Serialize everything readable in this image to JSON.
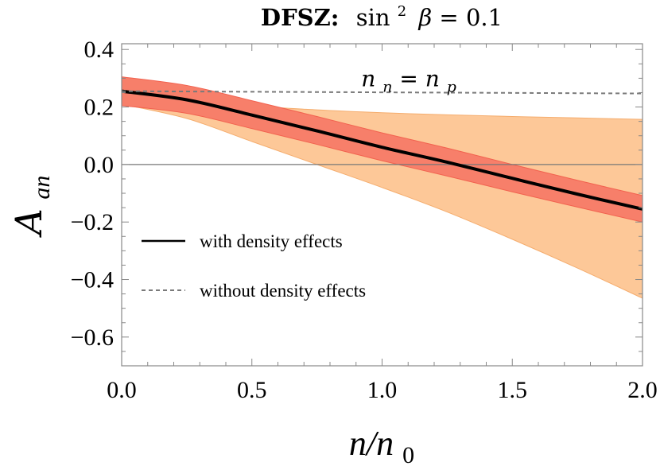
{
  "chart_data": {
    "type": "line",
    "title_parts": {
      "bold": "DFSZ:",
      "func": "sin",
      "exp": "2",
      "symbol": "β",
      "rest": " = 0.1"
    },
    "xlabel": "n/n0",
    "xlabel_parts": {
      "main": "n/n",
      "sub": "0"
    },
    "ylabel": "A_an",
    "ylabel_parts": {
      "main": "A",
      "sub": "an"
    },
    "xlim": [
      0.0,
      2.0
    ],
    "ylim": [
      -0.7,
      0.42
    ],
    "x_ticks": [
      "0.0",
      "0.5",
      "1.0",
      "1.5",
      "2.0"
    ],
    "x_tick_values": [
      0.0,
      0.5,
      1.0,
      1.5,
      2.0
    ],
    "y_ticks": [
      "0.4",
      "0.2",
      "0.0",
      "−0.2",
      "−0.4",
      "−0.6"
    ],
    "y_tick_values": [
      0.4,
      0.2,
      0.0,
      -0.2,
      -0.4,
      -0.6
    ],
    "x": [
      0.0,
      0.25,
      0.5,
      0.75,
      1.0,
      1.25,
      1.5,
      1.75,
      2.0
    ],
    "series": [
      {
        "name": "with density effects",
        "style": "solid",
        "color": "#000000",
        "values": [
          0.255,
          0.225,
          0.172,
          0.117,
          0.06,
          0.008,
          -0.048,
          -0.103,
          -0.155
        ],
        "band": {
          "lower": [
            0.205,
            0.178,
            0.125,
            0.07,
            0.013,
            -0.04,
            -0.095,
            -0.148,
            -0.2
          ],
          "upper": [
            0.305,
            0.275,
            0.222,
            0.167,
            0.11,
            0.057,
            0.0,
            -0.055,
            -0.108
          ]
        }
      },
      {
        "name": "without density effects",
        "style": "dashed",
        "color": "#7a7a7a",
        "values": [
          0.255,
          0.254,
          0.253,
          0.252,
          0.251,
          0.25,
          0.249,
          0.248,
          0.247
        ]
      }
    ],
    "outer_band": {
      "color": "#fdc898",
      "lower": [
        0.21,
        0.16,
        0.08,
        0.0,
        -0.08,
        -0.165,
        -0.26,
        -0.36,
        -0.465
      ],
      "upper": [
        0.26,
        0.235,
        0.205,
        0.19,
        0.18,
        0.173,
        0.167,
        0.162,
        0.157
      ]
    },
    "inner_band_color": "#f77f6a",
    "annotation": {
      "text_parts": {
        "a": "n",
        "a_sub": "n",
        "eq": " = ",
        "b": "n",
        "b_sub": "p"
      },
      "x": 0.92,
      "y": 0.3
    },
    "zero_line": true,
    "legend_placement": "left-center",
    "grid": false
  }
}
